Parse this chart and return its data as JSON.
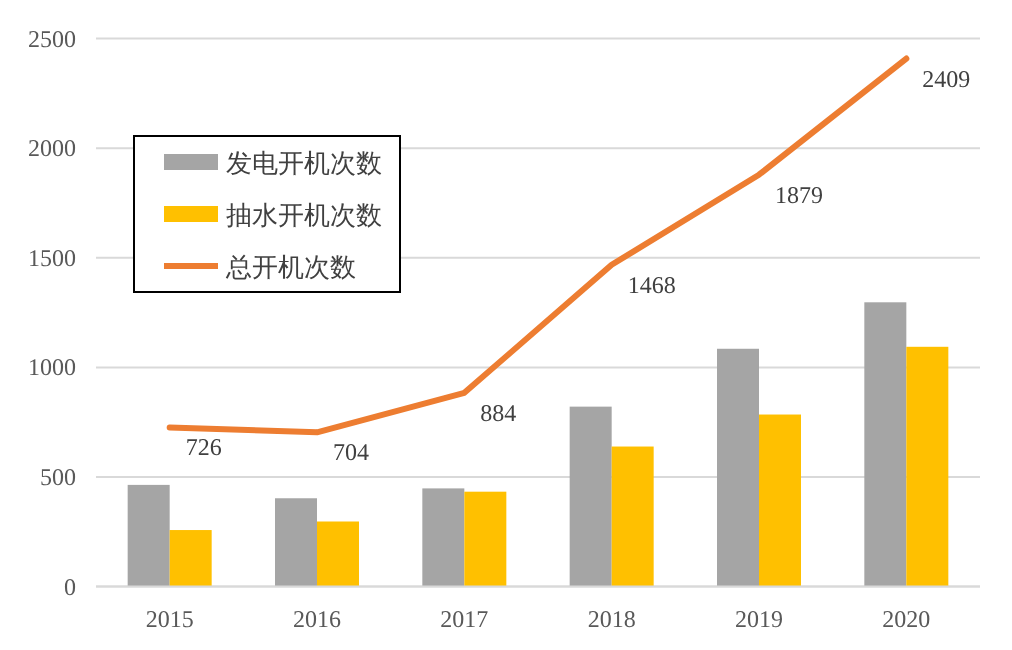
{
  "chart_data": {
    "type": "bar",
    "categories": [
      "2015",
      "2016",
      "2017",
      "2018",
      "2019",
      "2020"
    ],
    "series": [
      {
        "name": "发电开机次数",
        "color": "#a5a5a5",
        "values": [
          464,
          403,
          448,
          821,
          1085,
          1297
        ]
      },
      {
        "name": "抽水开机次数",
        "color": "#ffc000",
        "values": [
          258,
          297,
          433,
          639,
          785,
          1094
        ]
      },
      {
        "name": "总开机次数",
        "type": "line",
        "color": "#ed7d31",
        "values": [
          726,
          704,
          884,
          1468,
          1879,
          2409
        ],
        "value_labels": [
          "726",
          "704",
          "884",
          "1468",
          "1879",
          "2409"
        ]
      }
    ],
    "ylim": [
      0,
      2500
    ],
    "yticks": [
      0,
      500,
      1000,
      1500,
      2000,
      2500
    ],
    "grid": "y",
    "legend": "top left"
  }
}
